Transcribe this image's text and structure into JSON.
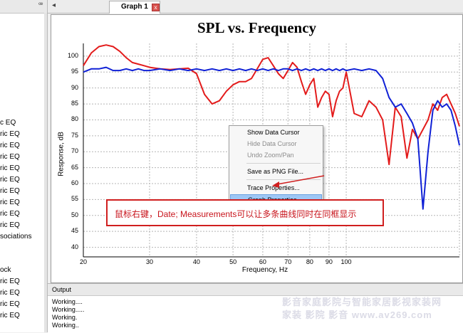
{
  "left_panel": {
    "pin_icon": "pin-icon",
    "items": [
      "c EQ",
      "ric EQ",
      "ric EQ",
      "ric EQ",
      "ric EQ",
      "ric EQ",
      "ric EQ",
      "ric EQ",
      "ric EQ",
      "ric EQ",
      "sociations",
      "ock",
      "ric EQ",
      "ric EQ",
      "ric EQ",
      "ric EQ"
    ]
  },
  "tabs": {
    "arrow": "◂",
    "active_label": "Graph 1",
    "close": "x"
  },
  "graph": {
    "title": "SPL vs. Frequency"
  },
  "chart_data": {
    "type": "line",
    "title": "SPL vs. Frequency",
    "xlabel": "Frequency, Hz",
    "ylabel": "Response, dB",
    "x_scale": "log",
    "xlim": [
      20,
      200
    ],
    "ylim": [
      37,
      104
    ],
    "x_ticks": [
      20,
      30,
      40,
      50,
      60,
      70,
      80,
      90,
      100
    ],
    "y_ticks": [
      100,
      95,
      90,
      85,
      80,
      75,
      70,
      65,
      60,
      55,
      50,
      45,
      40
    ],
    "grid": true,
    "series": [
      {
        "color": "#e31b1b",
        "x": [
          20,
          21,
          22,
          23,
          24,
          25,
          26,
          27,
          28,
          29,
          30,
          32,
          34,
          36,
          38,
          40,
          42,
          44,
          46,
          48,
          50,
          52,
          54,
          56,
          58,
          60,
          62,
          64,
          66,
          68,
          70,
          72,
          74,
          76,
          78,
          80,
          82,
          84,
          86,
          88,
          90,
          92,
          94,
          96,
          98,
          100,
          105,
          110,
          115,
          120,
          125,
          130,
          135,
          140,
          145,
          150,
          155,
          160,
          165,
          170,
          175,
          180,
          185,
          190,
          195,
          200
        ],
        "values": [
          97,
          101,
          103,
          103.5,
          103,
          101.5,
          99.5,
          98,
          97.5,
          97,
          96.5,
          96,
          95.8,
          96,
          96.2,
          94.5,
          88,
          85,
          86,
          89,
          91,
          92,
          92,
          93,
          96,
          99,
          99.5,
          97,
          94.5,
          93,
          95.5,
          98,
          96.5,
          92,
          88,
          91,
          93,
          84,
          87,
          89,
          88,
          81,
          86,
          89,
          90,
          95,
          82,
          81,
          86,
          84,
          80,
          66,
          84,
          81,
          68,
          77,
          74,
          77,
          80,
          85,
          83,
          87,
          88,
          85,
          82,
          78
        ]
      },
      {
        "color": "#1021d6",
        "x": [
          20,
          21,
          22,
          23,
          24,
          25,
          26,
          27,
          28,
          29,
          30,
          32,
          34,
          36,
          38,
          40,
          42,
          44,
          46,
          48,
          50,
          52,
          54,
          56,
          58,
          60,
          62,
          64,
          66,
          68,
          70,
          72,
          74,
          76,
          78,
          80,
          82,
          84,
          86,
          88,
          90,
          92,
          94,
          96,
          98,
          100,
          105,
          110,
          115,
          120,
          125,
          130,
          135,
          140,
          145,
          150,
          155,
          160,
          165,
          170,
          175,
          180,
          185,
          190,
          195,
          200
        ],
        "values": [
          95,
          96,
          96,
          96.5,
          95.5,
          95.5,
          96,
          95.5,
          96,
          95.5,
          95.5,
          96,
          95.5,
          96,
          95.5,
          96,
          95.5,
          96,
          95.5,
          96,
          95.5,
          96,
          95.5,
          96,
          95.5,
          96,
          95.5,
          96,
          95.5,
          96,
          96,
          95.5,
          96,
          95.5,
          96,
          95.5,
          96,
          95.5,
          96,
          95.5,
          96,
          95.5,
          96,
          95.5,
          96,
          95.5,
          96,
          95.5,
          96,
          95.5,
          93,
          87,
          84,
          85,
          82,
          79,
          74,
          52,
          70,
          83,
          86,
          84,
          85,
          83,
          78,
          72
        ]
      }
    ]
  },
  "context_menu": {
    "items": [
      {
        "label": "Show Data Cursor",
        "enabled": true
      },
      {
        "label": "Hide Data Cursor",
        "enabled": false
      },
      {
        "label": "Undo Zoom/Pan",
        "enabled": false
      },
      {
        "label": "Save as PNG File...",
        "enabled": true
      },
      {
        "label": "Trace Properties...",
        "enabled": true
      },
      {
        "label": "Graph Properties...",
        "enabled": true,
        "highlighted": true
      }
    ]
  },
  "annotation": {
    "text": "鼠标右键，Date; Measurements可以让多条曲线同时在同框显示",
    "color": "#d01f1f"
  },
  "output": {
    "title": "Output",
    "lines": [
      "Working....",
      "Working.....",
      "Working.",
      "Working.."
    ]
  },
  "watermark": {
    "line1": "影音家庭影院与智能家居影视家装网",
    "line2": "家装  影院  影音  www.av269.com"
  }
}
